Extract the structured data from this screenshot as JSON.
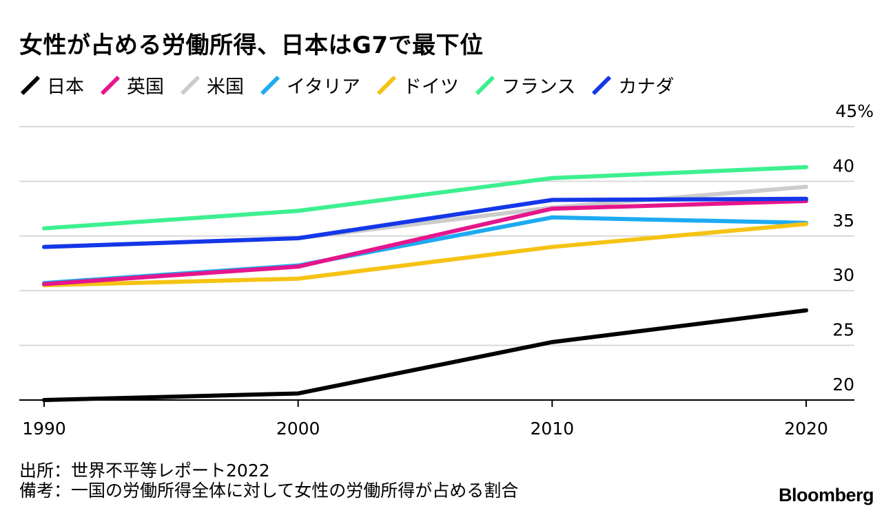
{
  "title": "女性が占める労働所得、日本はG7で最下位",
  "legend": [
    {
      "label": "日本",
      "color": "#000000"
    },
    {
      "label": "英国",
      "color": "#e5168c"
    },
    {
      "label": "米国",
      "color": "#cccccc"
    },
    {
      "label": "イタリア",
      "color": "#1eaaf1"
    },
    {
      "label": "ドイツ",
      "color": "#f5c314"
    },
    {
      "label": "フランス",
      "color": "#3df08f"
    },
    {
      "label": "カナダ",
      "color": "#1437e8"
    }
  ],
  "footnote": {
    "source": "出所：世界不平等レポート2022",
    "note": "備考：一国の労働所得全体に対して女性の労働所得が占める割合"
  },
  "brand": "Bloomberg",
  "chart_data": {
    "type": "line",
    "title": "女性が占める労働所得、日本はG7で最下位",
    "xlabel": "",
    "ylabel": "",
    "x": [
      1990,
      2000,
      2010,
      2020
    ],
    "x_tick_labels": [
      "1990",
      "2000",
      "2010",
      "2020"
    ],
    "ylim": [
      20,
      45
    ],
    "y_ticks": [
      20,
      25,
      30,
      35,
      40,
      45
    ],
    "y_tick_labels": [
      "20",
      "25",
      "30",
      "35",
      "40",
      "45%"
    ],
    "grid": true,
    "y_axis_position": "right",
    "series": [
      {
        "name": "米国",
        "color": "#cccccc",
        "values": [
          34.0,
          34.8,
          37.6,
          39.5
        ]
      },
      {
        "name": "イタリア",
        "color": "#1eaaf1",
        "values": [
          30.7,
          32.3,
          36.7,
          36.2
        ]
      },
      {
        "name": "ドイツ",
        "color": "#f5c314",
        "values": [
          30.5,
          31.1,
          34.0,
          36.1
        ]
      },
      {
        "name": "英国",
        "color": "#e5168c",
        "values": [
          30.6,
          32.2,
          37.5,
          38.2
        ]
      },
      {
        "name": "フランス",
        "color": "#3df08f",
        "values": [
          35.7,
          37.3,
          40.3,
          41.3
        ]
      },
      {
        "name": "カナダ",
        "color": "#1437e8",
        "values": [
          34.0,
          34.8,
          38.3,
          38.4
        ]
      },
      {
        "name": "日本",
        "color": "#000000",
        "values": [
          20.0,
          20.6,
          25.3,
          28.2
        ]
      }
    ]
  }
}
